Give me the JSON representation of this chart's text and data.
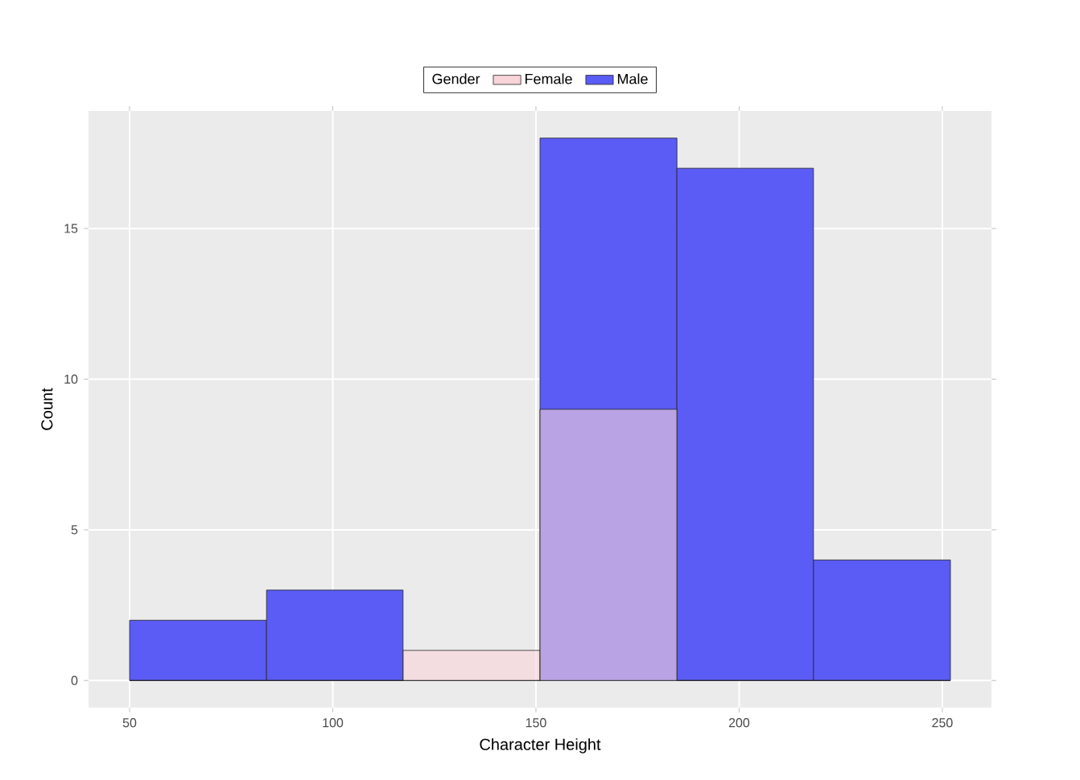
{
  "chart_data": {
    "type": "histogram",
    "xlabel": "Character Height",
    "ylabel": "Count",
    "legend_title": "Gender",
    "bins": [
      50,
      83.7,
      117.3,
      151,
      184.7,
      218.3,
      252
    ],
    "series": [
      {
        "name": "Female",
        "color": "#f8d3d8",
        "values": [
          0,
          0,
          1,
          9,
          0,
          0
        ]
      },
      {
        "name": "Male",
        "color": "#5b5bf5",
        "values": [
          2,
          3,
          0,
          18,
          17,
          4
        ]
      }
    ],
    "xlim": [
      39.9,
      262.1
    ],
    "ylim": [
      -0.9,
      18.9
    ],
    "xticks": [
      50,
      100,
      150,
      200,
      250
    ],
    "yticks": [
      0,
      5,
      10,
      15
    ],
    "grid": true,
    "legend": "top"
  }
}
